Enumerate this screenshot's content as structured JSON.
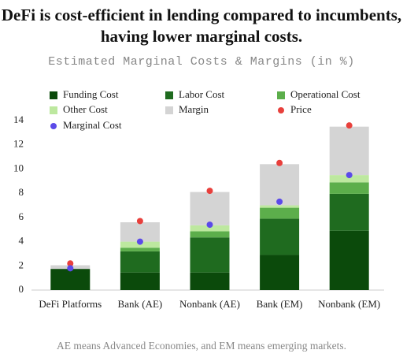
{
  "chart_data": {
    "type": "bar",
    "stacked": true,
    "title": "DeFi is cost-efficient in lending compared to incumbents, having lower marginal costs.",
    "subtitle": "Estimated Marginal Costs & Margins (in %)",
    "note": "AE means Advanced Economies, and EM means emerging markets.",
    "categories": [
      "DeFi Platforms",
      "Bank (AE)",
      "Nonbank (AE)",
      "Bank (EM)",
      "Nonbank (EM)"
    ],
    "series": [
      {
        "name": "Funding Cost",
        "type": "bar",
        "color": "#0b4a0b",
        "values": [
          1.75,
          1.45,
          1.45,
          2.9,
          4.9
        ]
      },
      {
        "name": "Labor Cost",
        "type": "bar",
        "color": "#1f6b1f",
        "values": [
          0,
          1.75,
          2.9,
          3.0,
          3.05
        ]
      },
      {
        "name": "Operational Cost",
        "type": "bar",
        "color": "#5cae4b",
        "values": [
          0,
          0.3,
          0.5,
          0.9,
          0.95
        ]
      },
      {
        "name": "Other Cost",
        "type": "bar",
        "color": "#bde89f",
        "values": [
          0,
          0.5,
          0.5,
          0.2,
          0.6
        ]
      },
      {
        "name": "Margin",
        "type": "bar",
        "color": "#d4d4d4",
        "values": [
          0.3,
          1.6,
          2.75,
          3.4,
          4.0
        ]
      },
      {
        "name": "Price",
        "type": "scatter",
        "color": "#e8403c",
        "values": [
          2.2,
          5.7,
          8.2,
          10.5,
          13.6
        ]
      },
      {
        "name": "Marginal Cost",
        "type": "scatter",
        "color": "#5b4ae8",
        "values": [
          1.8,
          4.0,
          5.4,
          7.3,
          9.5
        ]
      }
    ],
    "ylim": [
      0,
      14
    ],
    "yticks": [
      0,
      2,
      4,
      6,
      8,
      10,
      12,
      14
    ],
    "grid": false
  }
}
